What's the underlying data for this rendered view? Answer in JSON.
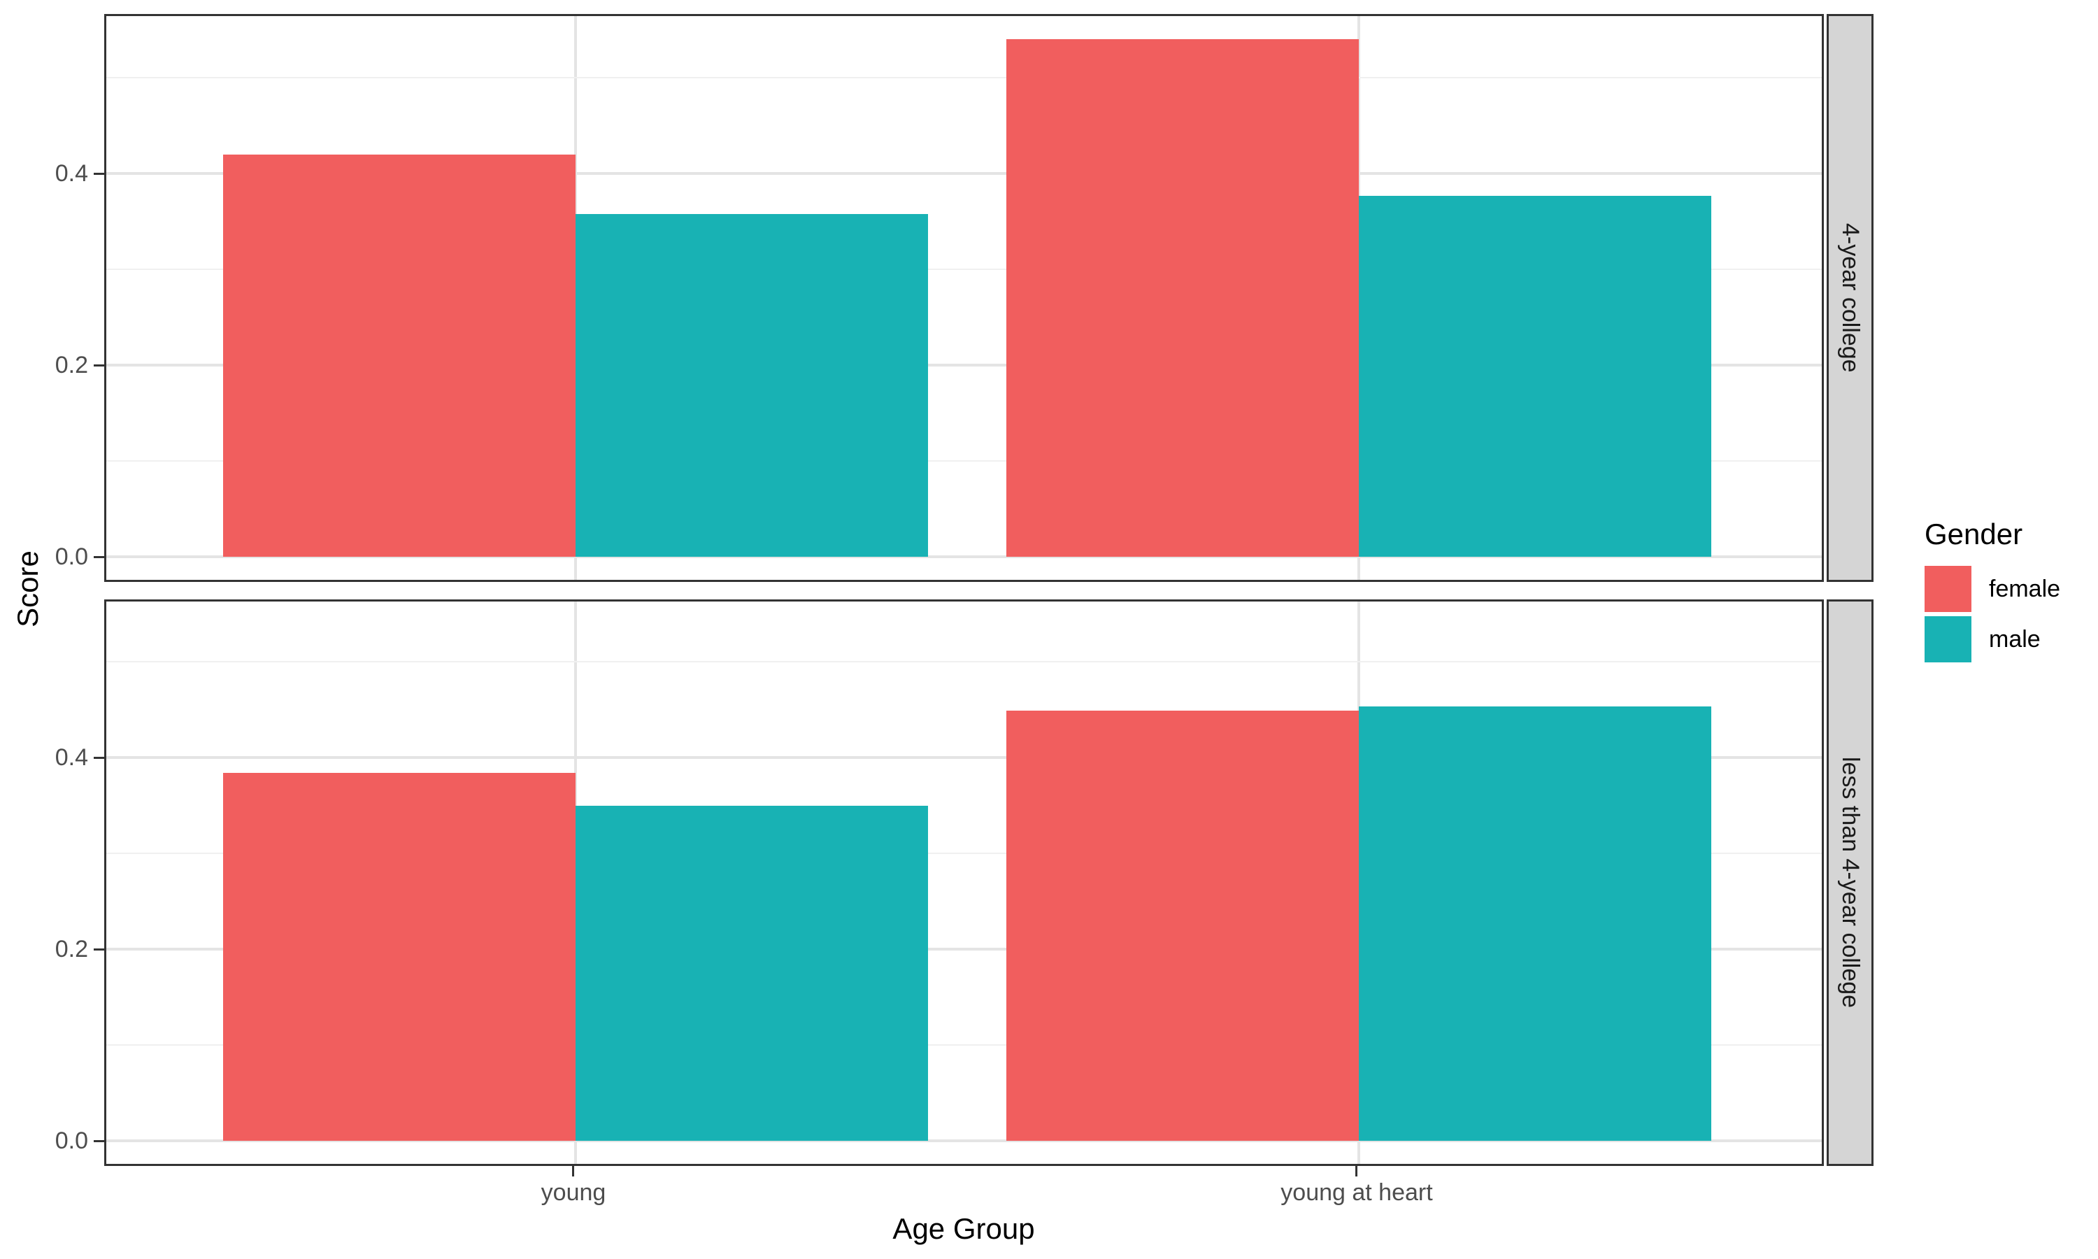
{
  "chart_data": {
    "type": "bar",
    "xlabel": "Age Group",
    "ylabel": "Score",
    "categories": [
      "young",
      "young at heart"
    ],
    "ytick_labels": [
      "0.0",
      "0.2",
      "0.4"
    ],
    "ytick_values": [
      0,
      0.2,
      0.4
    ],
    "minor_gridlines": [
      0.1,
      0.3,
      0.5
    ],
    "ylim": [
      -0.027,
      0.57
    ],
    "grid": true,
    "legend_position": "right",
    "legend": {
      "title": "Gender",
      "entries": [
        {
          "label": "female",
          "color": "#F15E5E"
        },
        {
          "label": "male",
          "color": "#18B2B4"
        }
      ]
    },
    "facets": [
      {
        "label": "4-year college",
        "series": [
          {
            "name": "female",
            "values": [
              0.42,
              0.54
            ]
          },
          {
            "name": "male",
            "values": [
              0.358,
              0.377
            ]
          }
        ]
      },
      {
        "label": "less than 4-year college",
        "series": [
          {
            "name": "female",
            "values": [
              0.384,
              0.449
            ]
          },
          {
            "name": "male",
            "values": [
              0.35,
              0.453
            ]
          }
        ]
      }
    ],
    "colors": {
      "female": "#F15E5E",
      "male": "#18B2B4",
      "strip_fill": "#D5D5D5",
      "panel_border": "#333333",
      "grid_major": "#E4E4E4",
      "grid_minor": "#F0F0F0",
      "tick_label": "#4D4D4D"
    }
  }
}
